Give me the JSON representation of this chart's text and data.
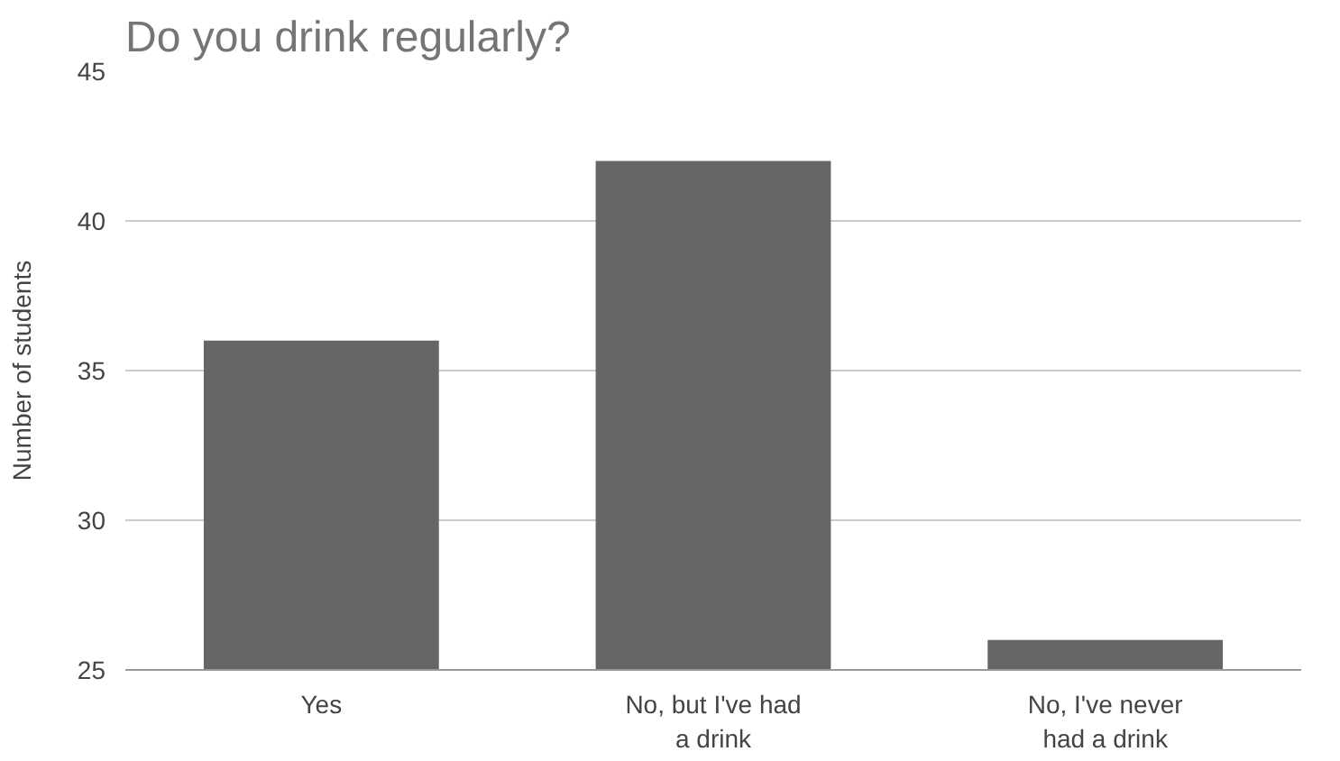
{
  "chart_data": {
    "type": "bar",
    "title": "Do you drink regularly?",
    "ylabel": "Number of students",
    "categories": [
      "Yes",
      "No, but I've had a drink",
      "No, I've never had a drink"
    ],
    "values": [
      36,
      42,
      26
    ],
    "color": "#666666",
    "ylim": [
      25,
      45
    ],
    "yticks": [
      25,
      30,
      35,
      40,
      45
    ],
    "grid": "y"
  }
}
